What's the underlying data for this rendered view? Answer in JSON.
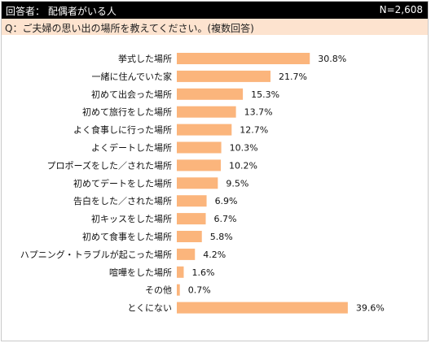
{
  "header": {
    "respondent": "回答者： 配偶者がいる人",
    "count": "N=2,608"
  },
  "question": "Q：ご夫婦の思い出の場所を教えてください。(複数回答)",
  "chart_data": {
    "type": "bar",
    "orientation": "horizontal",
    "categories": [
      "挙式した場所",
      "一緒に住んでいた家",
      "初めて出会った場所",
      "初めて旅行をした場所",
      "よく食事しに行った場所",
      "よくデートした場所",
      "プロポーズをした／された場所",
      "初めてデートをした場所",
      "告白をした／された場所",
      "初キッスをした場所",
      "初めて食事をした場所",
      "ハプニング・トラブルが起こった場所",
      "喧嘩をした場所",
      "その他",
      "とくにない"
    ],
    "values": [
      30.8,
      21.7,
      15.3,
      13.7,
      12.7,
      10.3,
      10.2,
      9.5,
      6.9,
      6.7,
      5.8,
      4.2,
      1.6,
      0.7,
      39.6
    ],
    "value_labels": [
      "30.8%",
      "21.7%",
      "15.3%",
      "13.7%",
      "12.7%",
      "10.3%",
      "10.2%",
      "9.5%",
      "6.9%",
      "6.7%",
      "5.8%",
      "4.2%",
      "1.6%",
      "0.7%",
      "39.6%"
    ],
    "unit": "%",
    "grid": false,
    "bar_color": "#fbb57c"
  }
}
